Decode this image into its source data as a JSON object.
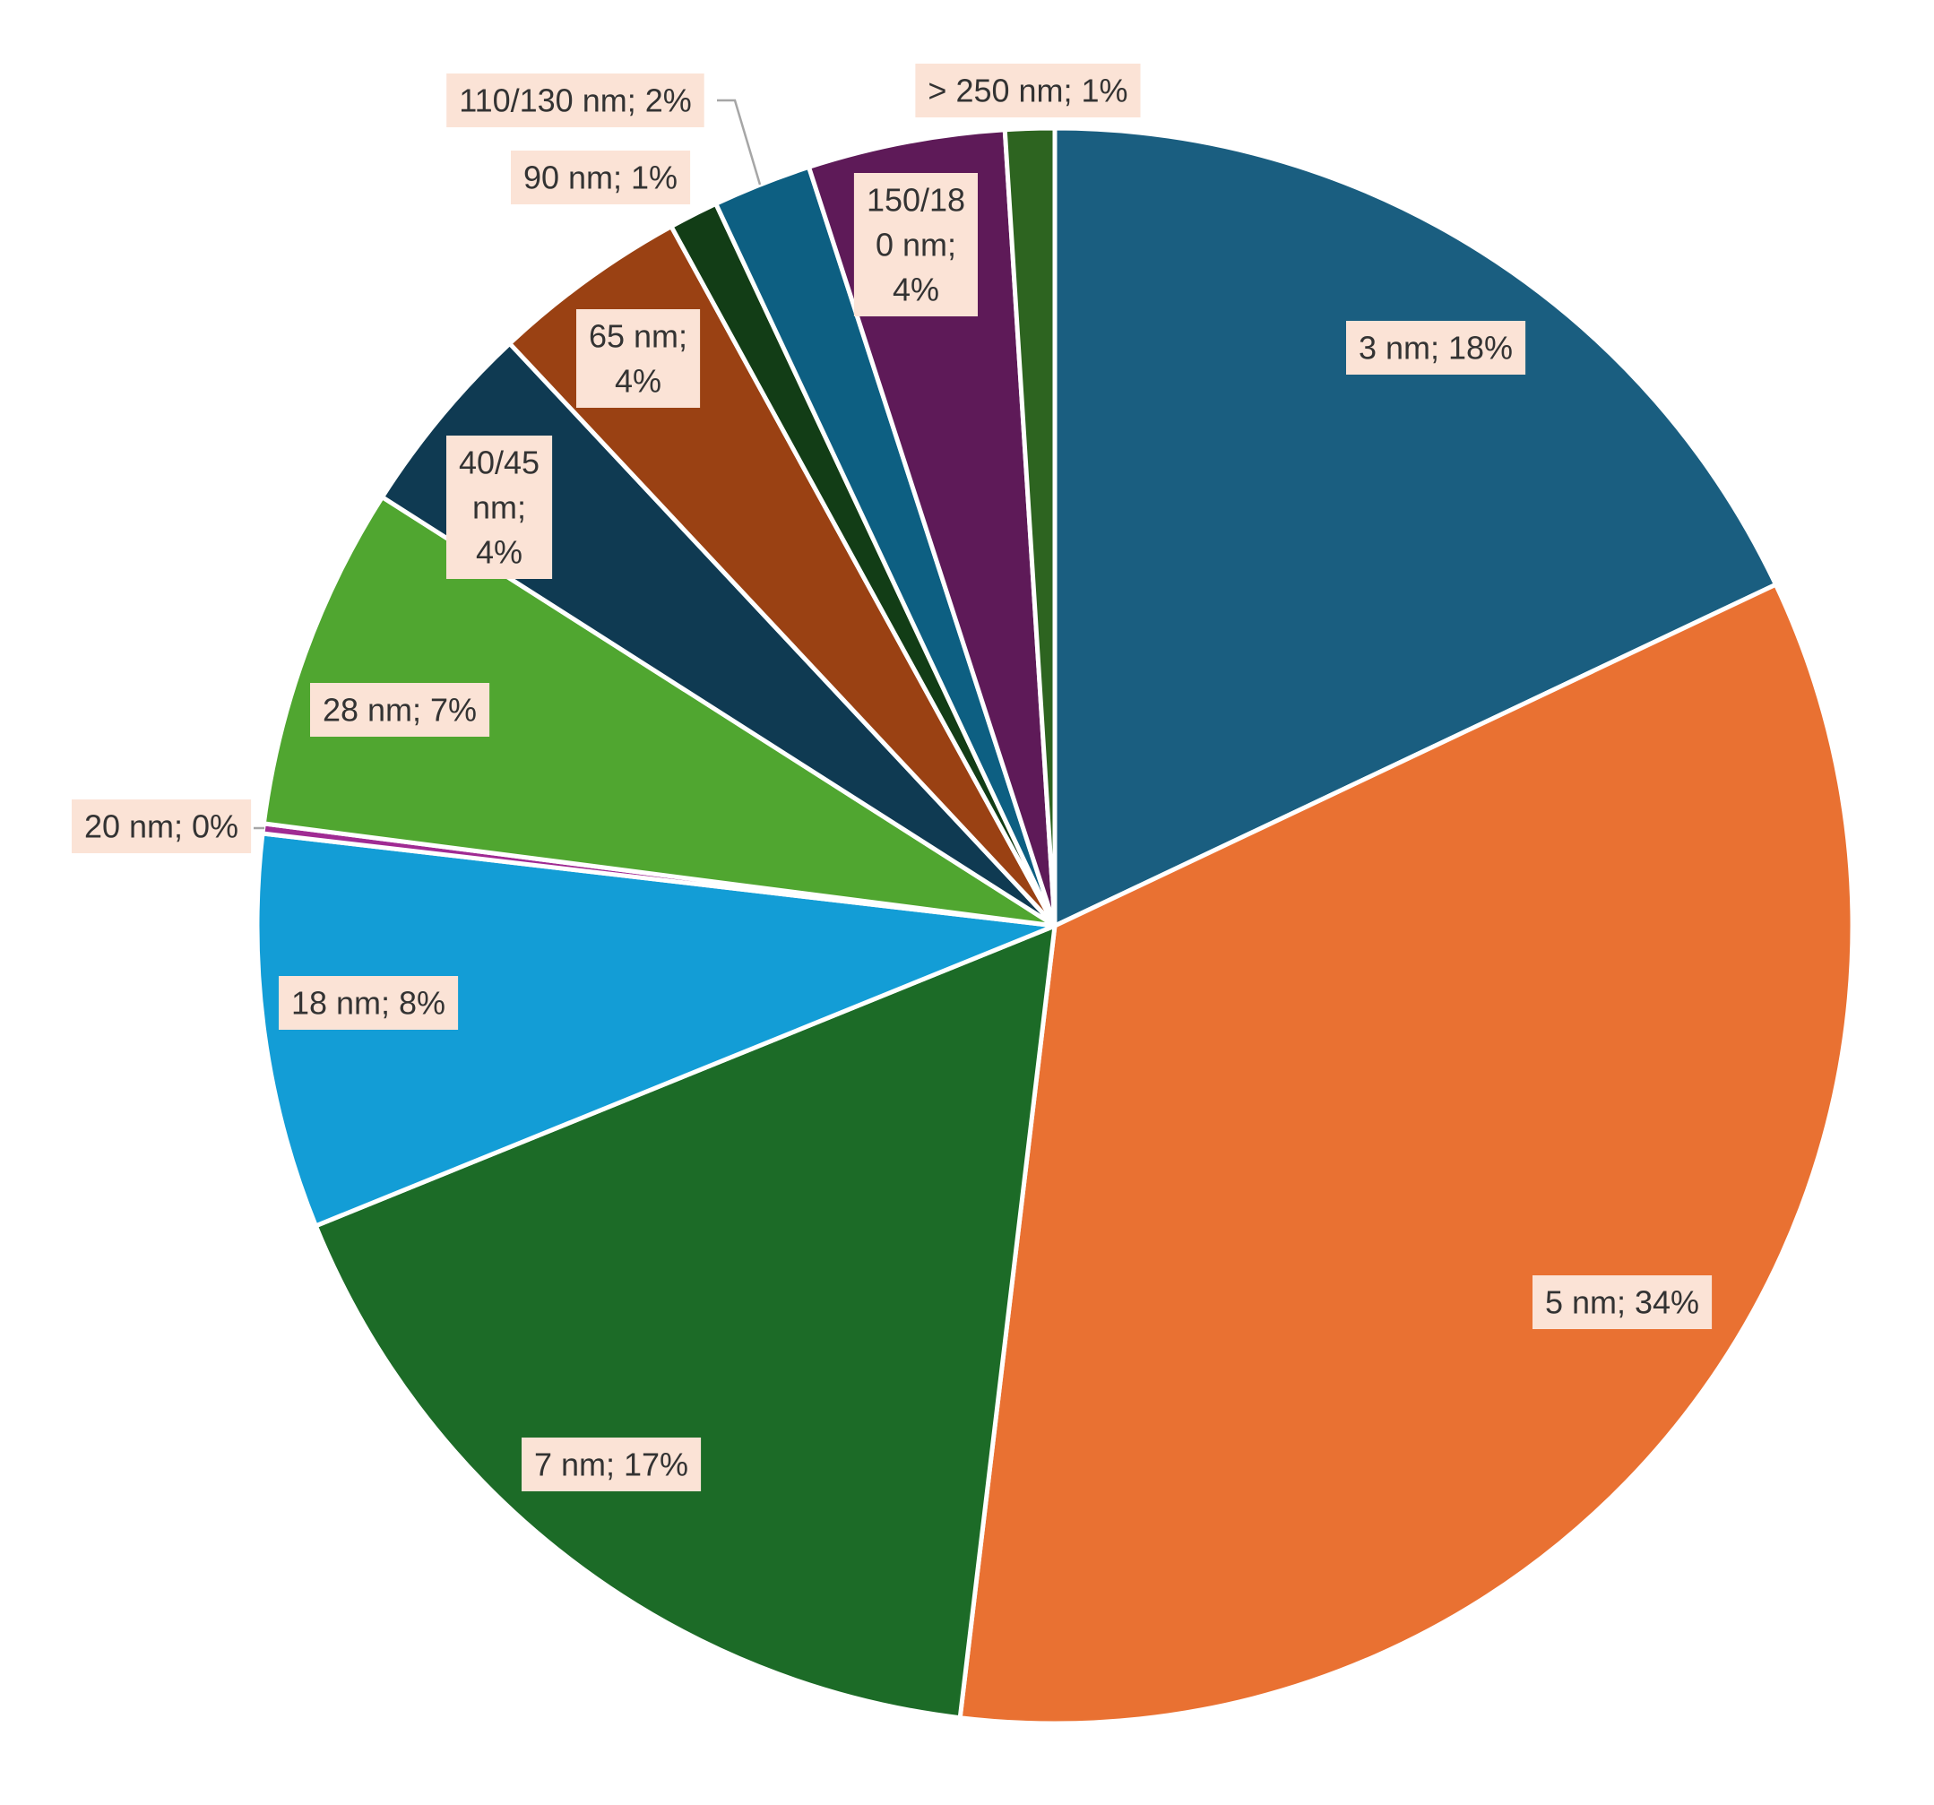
{
  "chart_data": {
    "type": "pie",
    "title": "",
    "start_angle_deg": 0,
    "direction": "clockwise",
    "slices": [
      {
        "label": "3 nm",
        "value": 18,
        "data_label": [
          "3 nm; 18%"
        ],
        "color": "#1a5e80"
      },
      {
        "label": "5 nm",
        "value": 34,
        "data_label": [
          "5 nm; 34%"
        ],
        "color": "#e97132"
      },
      {
        "label": "7 nm",
        "value": 17,
        "data_label": [
          "7 nm; 17%"
        ],
        "color": "#1c6b27"
      },
      {
        "label": "18 nm",
        "value": 8,
        "data_label": [
          "18 nm; 8%"
        ],
        "color": "#139dd6"
      },
      {
        "label": "20 nm",
        "value": 0.2,
        "data_label": [
          "20 nm; 0%"
        ],
        "color": "#a02b93"
      },
      {
        "label": "28 nm",
        "value": 7,
        "data_label": [
          "28 nm; 7%"
        ],
        "color": "#50a630"
      },
      {
        "label": "40/45 nm",
        "value": 4,
        "data_label": [
          "40/45",
          "nm;",
          "4%"
        ],
        "color": "#0f3a52"
      },
      {
        "label": "65 nm",
        "value": 4,
        "data_label": [
          "65 nm;",
          "4%"
        ],
        "color": "#9a4113"
      },
      {
        "label": "90 nm",
        "value": 1,
        "data_label": [
          "90 nm; 1%"
        ],
        "color": "#123d16"
      },
      {
        "label": "110/130 nm",
        "value": 2,
        "data_label": [
          "110/130 nm; 2%"
        ],
        "color": "#0d5f82"
      },
      {
        "label": "150/180 nm",
        "value": 4,
        "data_label": [
          "150/18",
          "0 nm;",
          "4%"
        ],
        "color": "#5e1a58"
      },
      {
        "label": "> 250 nm",
        "value": 1,
        "data_label": [
          "> 250 nm; 1%"
        ],
        "color": "#2d6420"
      }
    ]
  }
}
